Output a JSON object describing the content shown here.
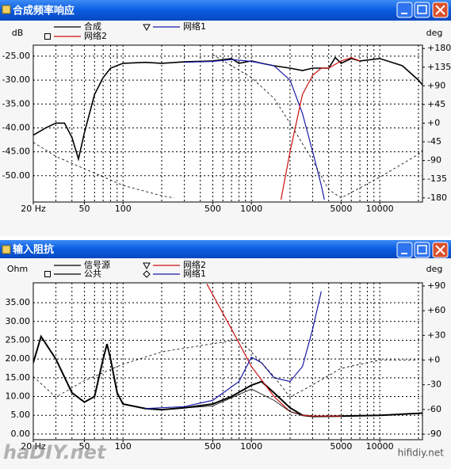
{
  "chart_data": [
    {
      "type": "line",
      "title": "合成频率响应",
      "ylabel": "dB",
      "y2label": "deg",
      "xscale": "log",
      "grid": true,
      "xlim": [
        20,
        21500
      ],
      "ylim": [
        -55.5,
        -22.7
      ],
      "y2lim": [
        -190,
        188
      ],
      "xticks": [
        {
          "value": 20,
          "label": "20 Hz"
        },
        50,
        100,
        500,
        1000,
        5000,
        10000
      ],
      "xgrid": [
        20,
        30,
        40,
        50,
        60,
        70,
        80,
        90,
        100,
        200,
        300,
        400,
        500,
        600,
        700,
        800,
        900,
        1000,
        2000,
        3000,
        4000,
        5000,
        6000,
        7000,
        8000,
        9000,
        10000,
        20000
      ],
      "yticks": [
        {
          "value": -25,
          "label": "-25.00"
        },
        {
          "value": -30,
          "label": "-30.00"
        },
        {
          "value": -35,
          "label": "-35.00"
        },
        {
          "value": -40,
          "label": "-40.00"
        },
        {
          "value": -45,
          "label": "-45.00"
        },
        {
          "value": -50,
          "label": "-50.00"
        }
      ],
      "y2ticks": [
        {
          "value": 180,
          "label": "+180"
        },
        {
          "value": 135,
          "label": "+135"
        },
        {
          "value": 90,
          "label": "+90"
        },
        {
          "value": 45,
          "label": "+45"
        },
        {
          "value": 0,
          "label": "+0"
        },
        -45,
        -90,
        -135,
        -180
      ],
      "series": [
        {
          "name": "合成",
          "color": "#000000",
          "width": 1.6,
          "x": [
            20,
            25,
            30,
            35,
            40,
            45,
            50,
            60,
            70,
            80,
            100,
            150,
            200,
            300,
            500,
            700,
            800,
            1000,
            1200,
            1500,
            2000,
            2500,
            3000,
            4000,
            4500,
            5000,
            6000,
            7000,
            10000,
            15000,
            20000,
            21500
          ],
          "values": [
            -41.5,
            -40,
            -39,
            -39,
            -42,
            -46.5,
            -41,
            -33,
            -29.5,
            -27.5,
            -26.5,
            -26.3,
            -26.5,
            -26.2,
            -26,
            -25.5,
            -26.5,
            -26,
            -26.5,
            -27,
            -27.5,
            -28,
            -27.5,
            -27.5,
            -25.3,
            -26.5,
            -25.5,
            -26,
            -25.5,
            -27,
            -30,
            -31
          ]
        },
        {
          "name": "网络1",
          "color": "#1a1aa8",
          "width": 1.2,
          "x": [
            300,
            500,
            700,
            1000,
            1500,
            2000,
            2500,
            3000,
            3500,
            3700
          ],
          "values": [
            -26.3,
            -26.1,
            -25.7,
            -26.1,
            -27,
            -30,
            -37,
            -45,
            -52,
            -55
          ]
        },
        {
          "name": "网络2",
          "color": "#cc1111",
          "width": 1.2,
          "x": [
            1700,
            2000,
            2500,
            3000,
            3500,
            4000,
            5000,
            6000,
            7000
          ],
          "values": [
            -55,
            -45,
            -33,
            -29,
            -27.5,
            -27.5,
            -26,
            -25.3,
            -26
          ]
        },
        {
          "color": "#000000",
          "width": 0.8,
          "dash": true,
          "axis": "y2",
          "x": [
            20,
            30,
            50,
            100,
            200,
            250,
            250,
            500,
            1000,
            1500,
            2000,
            3000,
            4000,
            5000,
            5000,
            10000,
            20000,
            21500
          ],
          "values": [
            -46,
            -80,
            -110,
            -150,
            -175,
            -180,
            null,
            165,
            110,
            60,
            0,
            -90,
            -160,
            -180,
            -180,
            -130,
            -75,
            -65
          ]
        }
      ]
    },
    {
      "type": "line",
      "title": "输入阻抗",
      "ylabel": "Ohm",
      "y2label": "deg",
      "xscale": "log",
      "grid": true,
      "xlim": [
        20,
        21500
      ],
      "ylim": [
        -1.5,
        40.3
      ],
      "y2lim": [
        -96.7,
        93.9
      ],
      "xticks": [
        {
          "value": 20,
          "label": "20 Hz"
        },
        50,
        100,
        500,
        1000,
        5000,
        10000
      ],
      "xgrid": [
        20,
        30,
        40,
        50,
        60,
        70,
        80,
        90,
        100,
        200,
        300,
        400,
        500,
        600,
        700,
        800,
        900,
        1000,
        2000,
        3000,
        4000,
        5000,
        6000,
        7000,
        8000,
        9000,
        10000,
        20000
      ],
      "yticks": [
        {
          "value": 0,
          "label": "0.00"
        },
        {
          "value": 5,
          "label": "5.00"
        },
        {
          "value": 10,
          "label": "10.00"
        },
        {
          "value": 15,
          "label": "15.00"
        },
        {
          "value": 20,
          "label": "20.00"
        },
        {
          "value": 25,
          "label": "25.00"
        },
        {
          "value": 30,
          "label": "30.00"
        },
        {
          "value": 35,
          "label": "35.00"
        }
      ],
      "y2ticks": [
        {
          "value": 90,
          "label": "+90"
        },
        {
          "value": 60,
          "label": "+60"
        },
        {
          "value": 30,
          "label": "+30"
        },
        {
          "value": 0,
          "label": "+0"
        },
        -30,
        -60,
        -90
      ],
      "series": [
        {
          "name": "信号源",
          "color": "#000000",
          "width": 2,
          "x": [
            20,
            23,
            30,
            40,
            50,
            60,
            70,
            75,
            80,
            90,
            100,
            150,
            200,
            300,
            500,
            700,
            1000,
            1200,
            1500,
            2000,
            2500,
            3000,
            5000,
            10000,
            20000,
            21500
          ],
          "values": [
            19,
            26,
            20,
            11,
            8.5,
            10,
            20,
            24,
            20,
            11,
            8,
            6.8,
            6.5,
            7,
            8,
            10,
            13,
            14,
            11,
            7,
            5,
            4.7,
            4.8,
            5,
            5.5,
            5.6
          ]
        },
        {
          "name": "网络2",
          "color": "#cc1111",
          "width": 1.2,
          "x": [
            450,
            700,
            1000,
            1500,
            2000,
            2500,
            3000,
            5000
          ],
          "values": [
            40,
            28,
            18,
            10,
            6,
            5,
            4.8,
            4.8
          ]
        },
        {
          "name": "公共",
          "color": "#000000",
          "width": 0.8,
          "x": [
            200,
            500,
            1000,
            1500,
            2000,
            2500
          ],
          "values": [
            6.5,
            7.5,
            12,
            9,
            6,
            5
          ]
        },
        {
          "name": "网络1",
          "color": "#1a1aa8",
          "width": 1.2,
          "x": [
            150,
            300,
            500,
            800,
            1000,
            1200,
            1500,
            2000,
            2500,
            3000,
            3500
          ],
          "values": [
            6.8,
            7.3,
            9,
            14,
            20.5,
            19,
            15,
            14,
            18,
            28,
            38
          ]
        },
        {
          "color": "#000000",
          "width": 0.8,
          "dash": true,
          "axis": "y2",
          "x": [
            20,
            30,
            50,
            100,
            200,
            500,
            800,
            1000,
            1500,
            2000,
            3000,
            5000,
            10000,
            20000
          ],
          "values": [
            -20,
            -45,
            -25,
            -5,
            10,
            20,
            25,
            10,
            -20,
            -45,
            -30,
            -10,
            0,
            0
          ]
        }
      ]
    }
  ],
  "watermarks": [
    "haDIY.net",
    "hifidiy.net"
  ]
}
